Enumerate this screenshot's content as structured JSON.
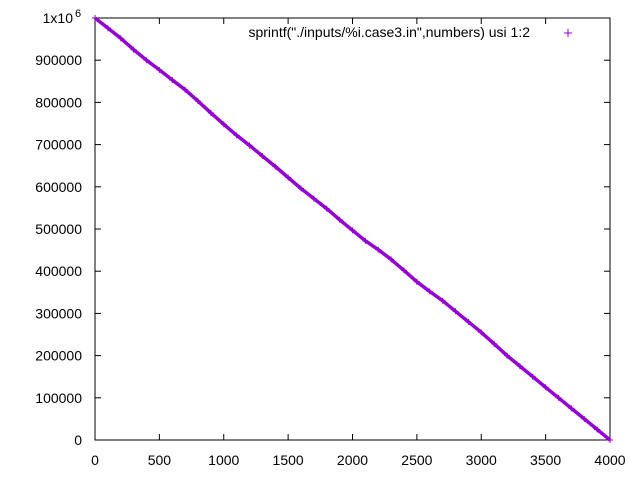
{
  "chart_data": {
    "type": "scatter",
    "title": "",
    "xlabel": "",
    "ylabel": "",
    "xlim": [
      0,
      4000
    ],
    "ylim": [
      0,
      1000000
    ],
    "x_ticks": [
      0,
      500,
      1000,
      1500,
      2000,
      2500,
      3000,
      3500,
      4000
    ],
    "x_tick_labels": [
      "0",
      "500",
      "1000",
      "1500",
      "2000",
      "2500",
      "3000",
      "3500",
      "4000"
    ],
    "y_ticks": [
      0,
      100000,
      200000,
      300000,
      400000,
      500000,
      600000,
      700000,
      800000,
      900000,
      1000000
    ],
    "y_tick_labels": [
      "0",
      "100000",
      "200000",
      "300000",
      "400000",
      "500000",
      "600000",
      "700000",
      "800000",
      "900000",
      "1x10"
    ],
    "y_top_exponent": "6",
    "grid": false,
    "legend_position": "top-right",
    "series": [
      {
        "name": "sprintf(\"./inputs/%i.case3.in\",numbers) usi 1:2",
        "color": "#9400d3",
        "marker": "plus",
        "x": [
          0,
          100,
          200,
          300,
          400,
          500,
          600,
          700,
          800,
          900,
          1000,
          1100,
          1200,
          1300,
          1400,
          1500,
          1600,
          1700,
          1800,
          1900,
          2000,
          2100,
          2200,
          2300,
          2400,
          2500,
          2600,
          2700,
          2800,
          2900,
          3000,
          3100,
          3200,
          3300,
          3400,
          3500,
          3600,
          3700,
          3800,
          3900,
          4000
        ],
        "y": [
          1000000,
          976000,
          952000,
          925000,
          900000,
          877000,
          853000,
          830000,
          803000,
          775000,
          748000,
          722000,
          698000,
          673000,
          648000,
          622000,
          596000,
          572000,
          548000,
          522000,
          497000,
          472000,
          451000,
          428000,
          402000,
          375000,
          352000,
          330000,
          305000,
          280000,
          255000,
          228000,
          200000,
          175000,
          150000,
          125000,
          100000,
          75000,
          50000,
          25000,
          0
        ]
      }
    ]
  }
}
